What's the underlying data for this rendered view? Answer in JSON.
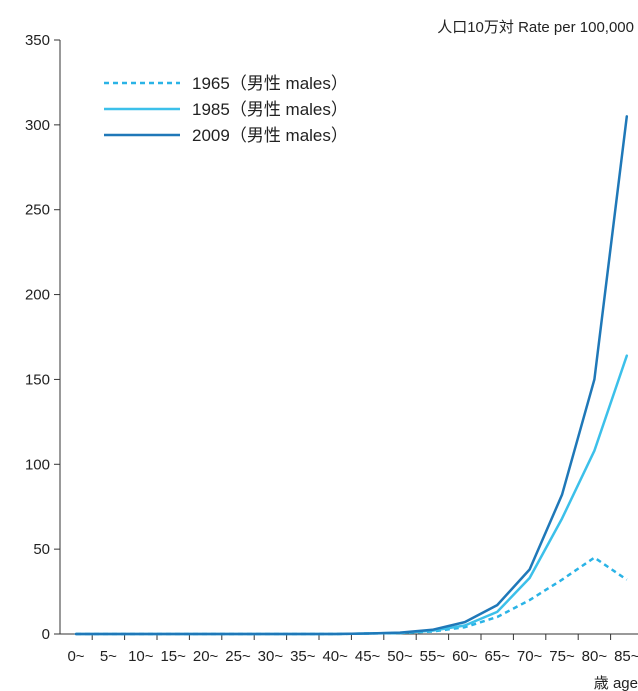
{
  "chart_data": {
    "type": "line",
    "title": "",
    "ylabel": "人口10万対  Rate per 100,000",
    "xlabel": "歳 age",
    "ylim": [
      0,
      350
    ],
    "yticks": [
      0,
      50,
      100,
      150,
      200,
      250,
      300,
      350
    ],
    "categories": [
      "0~",
      "5~",
      "10~",
      "15~",
      "20~",
      "25~",
      "30~",
      "35~",
      "40~",
      "45~",
      "50~",
      "55~",
      "60~",
      "65~",
      "70~",
      "75~",
      "80~",
      "85~"
    ],
    "legend_position": "top-left",
    "grid": false,
    "series": [
      {
        "name": "1965（男性 males）",
        "style": "dashed",
        "color": "#2ab3e6",
        "values": [
          0,
          0,
          0,
          0,
          0,
          0,
          0,
          0,
          0,
          0.3,
          0.6,
          1.5,
          4,
          10,
          20,
          32,
          45,
          32
        ]
      },
      {
        "name": "1985（男性 males）",
        "style": "solid",
        "color": "#3cc0ea",
        "values": [
          0,
          0,
          0,
          0,
          0,
          0,
          0,
          0,
          0,
          0.3,
          0.6,
          2,
          5,
          13,
          33,
          68,
          108,
          164
        ]
      },
      {
        "name": "2009（男性 males）",
        "style": "solid",
        "color": "#1f78b8",
        "values": [
          0,
          0,
          0,
          0,
          0,
          0,
          0,
          0,
          0,
          0.3,
          0.8,
          2.5,
          7,
          17,
          38,
          82,
          150,
          305
        ]
      }
    ]
  }
}
